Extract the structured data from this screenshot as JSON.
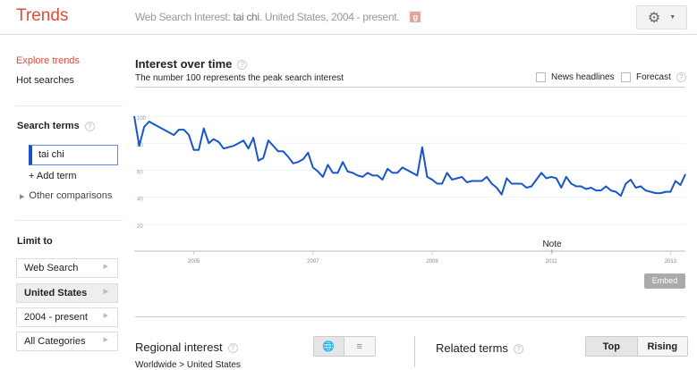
{
  "header": {
    "logo": "Trends",
    "subtitle_prefix": "Web Search Interest: ",
    "term": "tai chi",
    "subtitle_suffix": ". United States, 2004 - present.",
    "gplus": "g+",
    "gear": "gear-icon"
  },
  "sidebar": {
    "explore": "Explore trends",
    "hot": "Hot searches",
    "search_terms_label": "Search terms",
    "search_term_value": "tai chi",
    "add_term": "+ Add term",
    "other_comparisons": "Other comparisons",
    "limit_label": "Limit to",
    "limits": [
      "Web Search",
      "United States",
      "2004 - present",
      "All Categories"
    ]
  },
  "interest": {
    "title": "Interest over time",
    "note": "The number 100 represents the peak search interest",
    "news": "News headlines",
    "forecast": "Forecast",
    "note_marker": "Note",
    "embed": "Embed"
  },
  "regional": {
    "title": "Regional interest",
    "breadcrumb": "Worldwide > United States"
  },
  "related": {
    "title": "Related terms",
    "top": "Top",
    "rising": "Rising"
  },
  "chart_data": {
    "type": "line",
    "title": "Interest over time",
    "ylim": [
      0,
      100
    ],
    "yticks": [
      "20",
      "40",
      "60",
      "80",
      "100"
    ],
    "xticks": [
      "2005",
      "2007",
      "2009",
      "2011",
      "2013"
    ],
    "x_start": "2004-01",
    "x_step": "month",
    "grid": true,
    "color": "#1a55c8",
    "values": [
      100,
      78,
      92,
      96,
      94,
      92,
      90,
      88,
      86,
      90,
      90,
      86,
      75,
      75,
      91,
      80,
      83,
      81,
      76,
      77,
      78,
      80,
      82,
      76,
      84,
      67,
      69,
      82,
      78,
      74,
      74,
      70,
      65,
      66,
      68,
      73,
      62,
      59,
      55,
      64,
      58,
      58,
      66,
      59,
      58,
      56,
      55,
      58,
      56,
      56,
      53,
      61,
      58,
      58,
      62,
      60,
      58,
      56,
      77,
      55,
      53,
      50,
      50,
      58,
      53,
      54,
      55,
      51,
      52,
      52,
      52,
      55,
      50,
      47,
      42,
      54,
      50,
      50,
      50,
      47,
      48,
      53,
      58,
      54,
      55,
      54,
      47,
      55,
      50,
      48,
      48,
      46,
      47,
      45,
      45,
      48,
      45,
      44,
      41,
      50,
      53,
      47,
      48,
      45,
      44,
      43,
      43,
      44,
      44,
      52,
      49,
      57
    ]
  }
}
